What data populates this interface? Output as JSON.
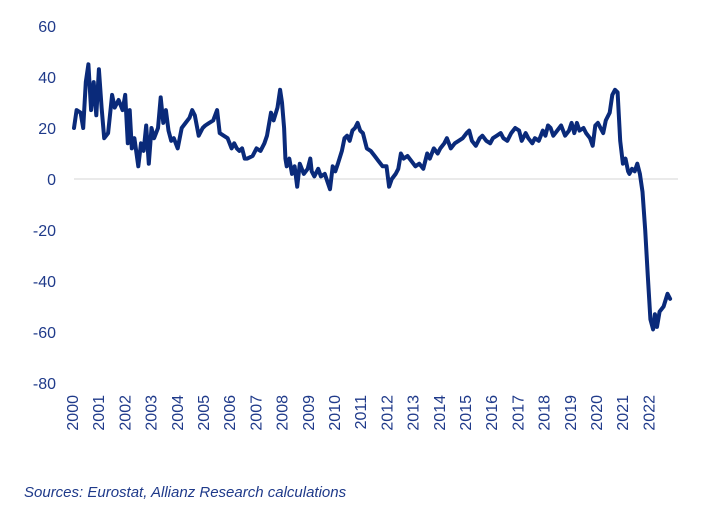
{
  "chart_data": {
    "type": "line",
    "ylim": [
      -80,
      60
    ],
    "yticks": [
      60,
      40,
      20,
      0,
      -20,
      -40,
      -60,
      -80
    ],
    "xlim": [
      2000,
      2022.9
    ],
    "xticks": [
      "2000",
      "2001",
      "2002",
      "2003",
      "2004",
      "2005",
      "2006",
      "2007",
      "2008",
      "2009",
      "2010",
      "2011",
      "2012",
      "2013",
      "2014",
      "2015",
      "2016",
      "2017",
      "2018",
      "2019",
      "2020",
      "2021",
      "2022"
    ],
    "zero_line": true,
    "line_color": "#0a2a7a",
    "series": [
      {
        "points": [
          [
            2000.0,
            20
          ],
          [
            2000.1,
            27
          ],
          [
            2000.25,
            26
          ],
          [
            2000.35,
            20
          ],
          [
            2000.45,
            38
          ],
          [
            2000.55,
            45
          ],
          [
            2000.65,
            27
          ],
          [
            2000.75,
            38
          ],
          [
            2000.85,
            25
          ],
          [
            2000.95,
            43
          ],
          [
            2001.05,
            28
          ],
          [
            2001.15,
            16
          ],
          [
            2001.3,
            18
          ],
          [
            2001.45,
            33
          ],
          [
            2001.55,
            28
          ],
          [
            2001.7,
            31
          ],
          [
            2001.85,
            27
          ],
          [
            2001.95,
            33
          ],
          [
            2002.05,
            14
          ],
          [
            2002.12,
            27
          ],
          [
            2002.2,
            12
          ],
          [
            2002.3,
            16
          ],
          [
            2002.45,
            5
          ],
          [
            2002.55,
            14
          ],
          [
            2002.65,
            11
          ],
          [
            2002.75,
            21
          ],
          [
            2002.85,
            6
          ],
          [
            2002.95,
            20
          ],
          [
            2003.05,
            16
          ],
          [
            2003.2,
            20
          ],
          [
            2003.3,
            32
          ],
          [
            2003.4,
            22
          ],
          [
            2003.5,
            27
          ],
          [
            2003.6,
            19
          ],
          [
            2003.7,
            15
          ],
          [
            2003.8,
            16
          ],
          [
            2003.95,
            12
          ],
          [
            2004.1,
            20
          ],
          [
            2004.25,
            22
          ],
          [
            2004.4,
            24
          ],
          [
            2004.5,
            27
          ],
          [
            2004.6,
            25
          ],
          [
            2004.75,
            17
          ],
          [
            2004.9,
            20
          ],
          [
            2005.0,
            21
          ],
          [
            2005.15,
            22
          ],
          [
            2005.3,
            23
          ],
          [
            2005.45,
            27
          ],
          [
            2005.55,
            18
          ],
          [
            2005.7,
            17
          ],
          [
            2005.85,
            16
          ],
          [
            2006.0,
            12
          ],
          [
            2006.1,
            14
          ],
          [
            2006.2,
            12
          ],
          [
            2006.3,
            11
          ],
          [
            2006.4,
            12
          ],
          [
            2006.5,
            8
          ],
          [
            2006.6,
            8
          ],
          [
            2006.8,
            9
          ],
          [
            2006.95,
            12
          ],
          [
            2007.1,
            11
          ],
          [
            2007.25,
            14
          ],
          [
            2007.35,
            17
          ],
          [
            2007.5,
            26
          ],
          [
            2007.6,
            23
          ],
          [
            2007.75,
            28
          ],
          [
            2007.85,
            35
          ],
          [
            2007.92,
            30
          ],
          [
            2008.0,
            20
          ],
          [
            2008.05,
            8
          ],
          [
            2008.1,
            5
          ],
          [
            2008.2,
            8
          ],
          [
            2008.3,
            2
          ],
          [
            2008.4,
            5
          ],
          [
            2008.5,
            -3
          ],
          [
            2008.6,
            6
          ],
          [
            2008.75,
            2
          ],
          [
            2008.9,
            4
          ],
          [
            2009.0,
            8
          ],
          [
            2009.05,
            3
          ],
          [
            2009.15,
            1
          ],
          [
            2009.3,
            4
          ],
          [
            2009.4,
            1
          ],
          [
            2009.55,
            2
          ],
          [
            2009.65,
            -1
          ],
          [
            2009.75,
            -4
          ],
          [
            2009.85,
            5
          ],
          [
            2009.95,
            3
          ],
          [
            2010.05,
            6
          ],
          [
            2010.2,
            11
          ],
          [
            2010.3,
            16
          ],
          [
            2010.4,
            17
          ],
          [
            2010.5,
            15
          ],
          [
            2010.6,
            19
          ],
          [
            2010.7,
            20
          ],
          [
            2010.8,
            22
          ],
          [
            2010.9,
            19
          ],
          [
            2011.0,
            18
          ],
          [
            2011.15,
            12
          ],
          [
            2011.3,
            11
          ],
          [
            2011.45,
            9
          ],
          [
            2011.6,
            7
          ],
          [
            2011.75,
            5
          ],
          [
            2011.9,
            5
          ],
          [
            2012.0,
            -3
          ],
          [
            2012.1,
            0
          ],
          [
            2012.25,
            2
          ],
          [
            2012.35,
            4
          ],
          [
            2012.45,
            10
          ],
          [
            2012.55,
            8
          ],
          [
            2012.7,
            9
          ],
          [
            2012.85,
            7
          ],
          [
            2013.0,
            5
          ],
          [
            2013.15,
            6
          ],
          [
            2013.3,
            4
          ],
          [
            2013.45,
            10
          ],
          [
            2013.55,
            8
          ],
          [
            2013.7,
            12
          ],
          [
            2013.85,
            10
          ],
          [
            2013.95,
            12
          ],
          [
            2014.1,
            14
          ],
          [
            2014.2,
            16
          ],
          [
            2014.35,
            12
          ],
          [
            2014.5,
            14
          ],
          [
            2014.65,
            15
          ],
          [
            2014.8,
            16
          ],
          [
            2014.95,
            18
          ],
          [
            2015.05,
            19
          ],
          [
            2015.15,
            15
          ],
          [
            2015.3,
            13
          ],
          [
            2015.45,
            16
          ],
          [
            2015.55,
            17
          ],
          [
            2015.7,
            15
          ],
          [
            2015.85,
            14
          ],
          [
            2015.95,
            16
          ],
          [
            2016.1,
            17
          ],
          [
            2016.25,
            18
          ],
          [
            2016.35,
            16
          ],
          [
            2016.5,
            15
          ],
          [
            2016.65,
            18
          ],
          [
            2016.8,
            20
          ],
          [
            2016.95,
            19
          ],
          [
            2017.05,
            15
          ],
          [
            2017.2,
            18
          ],
          [
            2017.3,
            16
          ],
          [
            2017.45,
            14
          ],
          [
            2017.55,
            16
          ],
          [
            2017.7,
            15
          ],
          [
            2017.85,
            19
          ],
          [
            2017.95,
            17
          ],
          [
            2018.05,
            21
          ],
          [
            2018.15,
            20
          ],
          [
            2018.25,
            17
          ],
          [
            2018.4,
            19
          ],
          [
            2018.55,
            21
          ],
          [
            2018.7,
            17
          ],
          [
            2018.85,
            19
          ],
          [
            2018.95,
            22
          ],
          [
            2019.05,
            18
          ],
          [
            2019.15,
            22
          ],
          [
            2019.25,
            19
          ],
          [
            2019.4,
            20
          ],
          [
            2019.5,
            18
          ],
          [
            2019.65,
            16
          ],
          [
            2019.75,
            13
          ],
          [
            2019.85,
            21
          ],
          [
            2019.95,
            22
          ],
          [
            2020.05,
            20
          ],
          [
            2020.15,
            18
          ],
          [
            2020.25,
            23
          ],
          [
            2020.4,
            26
          ],
          [
            2020.5,
            33
          ],
          [
            2020.6,
            35
          ],
          [
            2020.7,
            34
          ],
          [
            2020.8,
            15
          ],
          [
            2020.9,
            6
          ],
          [
            2021.0,
            8
          ],
          [
            2021.1,
            3
          ],
          [
            2021.15,
            2
          ],
          [
            2021.25,
            4
          ],
          [
            2021.35,
            3
          ],
          [
            2021.45,
            6
          ],
          [
            2021.55,
            2
          ],
          [
            2021.65,
            -5
          ],
          [
            2021.75,
            -20
          ],
          [
            2021.85,
            -38
          ],
          [
            2021.95,
            -55
          ],
          [
            2022.05,
            -59
          ],
          [
            2022.12,
            -53
          ],
          [
            2022.2,
            -58
          ],
          [
            2022.3,
            -52
          ],
          [
            2022.45,
            -50
          ],
          [
            2022.6,
            -45
          ],
          [
            2022.7,
            -47
          ]
        ]
      }
    ]
  },
  "source": "Sources: Eurostat, Allianz Research calculations"
}
